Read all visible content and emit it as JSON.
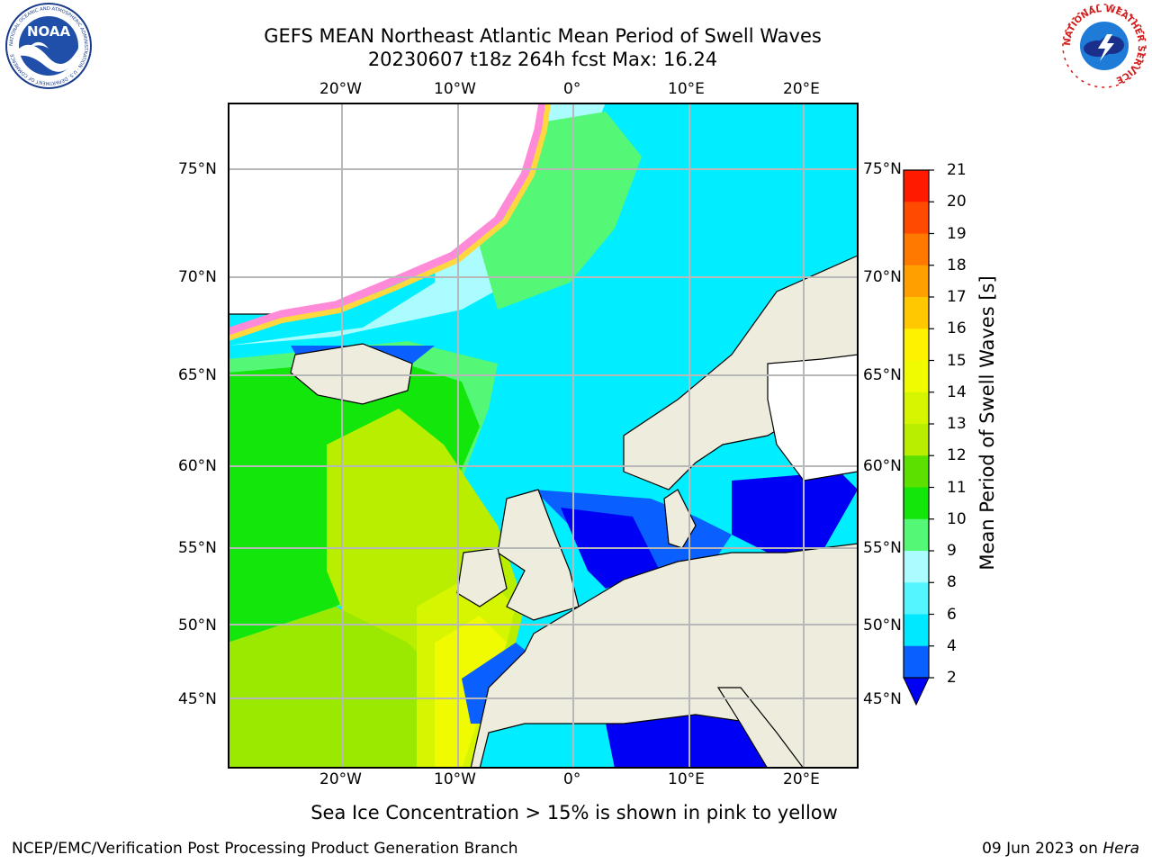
{
  "title": {
    "line1": "GEFS MEAN Northeast Atlantic Mean Period of Swell Waves",
    "line2": "20230607 t18z 264h fcst   Max: 16.24"
  },
  "map": {
    "lon_labels": [
      "20°W",
      "10°W",
      "0°",
      "10°E",
      "20°E"
    ],
    "lat_labels": [
      "75°N",
      "70°N",
      "65°N",
      "60°N",
      "55°N",
      "50°N",
      "45°N"
    ],
    "land_color": "#eeecdc",
    "grid_color": "#b8b8b8"
  },
  "colorbar": {
    "title": "Mean Period of Swell Waves [s]",
    "ticks": [
      "2",
      "4",
      "6",
      "8",
      "9",
      "10",
      "11",
      "12",
      "13",
      "14",
      "15",
      "16",
      "17",
      "18",
      "19",
      "20",
      "21"
    ],
    "colors": [
      "#0a5fff",
      "#00e8ff",
      "#55f5ff",
      "#aafcff",
      "#55f777",
      "#12e60a",
      "#5be000",
      "#b9ee00",
      "#d6f500",
      "#f0fa00",
      "#fff200",
      "#ffc800",
      "#ffa000",
      "#ff7800",
      "#ff4a00",
      "#ff1a00"
    ],
    "under_color": "#0000f5"
  },
  "logos": {
    "noaa_text": "NOAA",
    "noaa_ring": "NATIONAL OCEANIC AND ATMOSPHERIC ADMINISTRATION · U.S. DEPARTMENT OF COMMERCE",
    "nws_ring": "NATIONAL WEATHER SERVICE"
  },
  "note": "Sea Ice Concentration > 15% is shown in pink to yellow",
  "footer": {
    "left": "NCEP/EMC/Verification Post Processing Product Generation Branch",
    "date": "09 Jun 2023 on ",
    "host": "Hera"
  }
}
